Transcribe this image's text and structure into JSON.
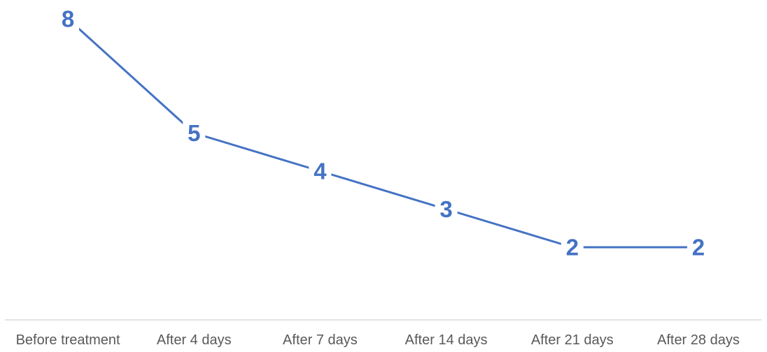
{
  "chart_data": {
    "type": "line",
    "categories": [
      "Before treatment",
      "After 4 days",
      "After 7 days",
      "After 14 days",
      "After 21 days",
      "After 28 days"
    ],
    "values": [
      8,
      5,
      4,
      3,
      2,
      2
    ],
    "data_labels": [
      "8",
      "5",
      "4",
      "3",
      "2",
      "2"
    ],
    "title": "",
    "xlabel": "",
    "ylabel": "",
    "grid": false,
    "legend": "none",
    "colors": {
      "series": "#4472C4",
      "axis": "#D9D9D9",
      "tick_text": "#595959"
    }
  }
}
